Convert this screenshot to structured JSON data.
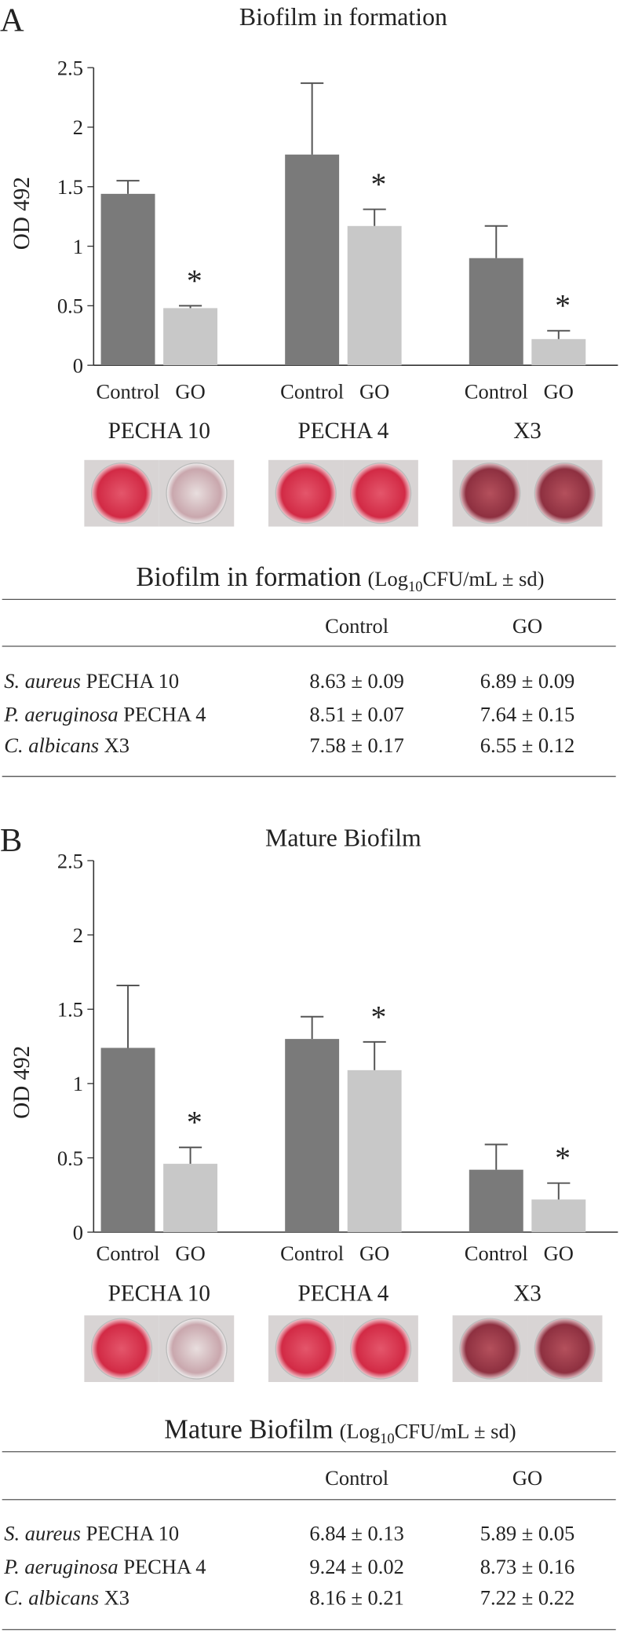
{
  "panels": [
    "A",
    "B"
  ],
  "chart_data": [
    {
      "type": "bar",
      "title": "Biofilm in formation",
      "y_label": "OD 492",
      "categories": [
        "PECHA 10",
        "PECHA 4",
        "X3"
      ],
      "series": [
        {
          "name": "Control",
          "color": "#7a7a7a",
          "values": [
            1.44,
            1.77,
            0.9
          ],
          "errors": [
            0.11,
            0.6,
            0.27
          ]
        },
        {
          "name": "GO",
          "color": "#c8c8c8",
          "values": [
            0.48,
            1.17,
            0.22
          ],
          "errors": [
            0.02,
            0.14,
            0.07
          ]
        }
      ],
      "significance": [
        "*",
        "*",
        "*"
      ],
      "ylim": [
        0,
        2.5
      ],
      "yticks": [
        0,
        0.5,
        1,
        1.5,
        2,
        2.5
      ]
    },
    {
      "type": "bar",
      "title": "Mature Biofilm",
      "y_label": "OD 492",
      "categories": [
        "PECHA 10",
        "PECHA 4",
        "X3"
      ],
      "series": [
        {
          "name": "Control",
          "color": "#7a7a7a",
          "values": [
            1.24,
            1.3,
            0.42
          ],
          "errors": [
            0.42,
            0.15,
            0.17
          ]
        },
        {
          "name": "GO",
          "color": "#c8c8c8",
          "values": [
            0.46,
            1.09,
            0.22
          ],
          "errors": [
            0.11,
            0.19,
            0.11
          ]
        }
      ],
      "significance": [
        "*",
        "*",
        "*"
      ],
      "ylim": [
        0,
        2.5
      ],
      "yticks": [
        0,
        0.5,
        1,
        1.5,
        2,
        2.5
      ]
    }
  ],
  "tables": [
    {
      "title": "Biofilm in formation",
      "unit_prefix": "(Log",
      "unit_sub": "10",
      "unit_suffix": "CFU/mL ± sd)",
      "columns": [
        "Control",
        "GO"
      ],
      "rows": [
        {
          "species": "S. aureus",
          "strain": "PECHA 10",
          "cells": [
            "8.63 ± 0.09",
            "6.89 ± 0.09"
          ]
        },
        {
          "species": "P. aeruginosa",
          "strain": "PECHA 4",
          "cells": [
            "8.51 ± 0.07",
            "7.64 ± 0.15"
          ]
        },
        {
          "species": "C. albicans",
          "strain": "X3",
          "cells": [
            "7.58 ± 0.17",
            "6.55 ± 0.12"
          ]
        }
      ]
    },
    {
      "title": "Mature Biofilm",
      "unit_prefix": "(Log",
      "unit_sub": "10",
      "unit_suffix": "CFU/mL ± sd)",
      "columns": [
        "Control",
        "GO"
      ],
      "rows": [
        {
          "species": "S. aureus",
          "strain": "PECHA 10",
          "cells": [
            "6.84 ± 0.13",
            "5.89 ± 0.05"
          ]
        },
        {
          "species": "P. aeruginosa",
          "strain": "PECHA 4",
          "cells": [
            "9.24 ± 0.02",
            "8.73 ± 0.16"
          ]
        },
        {
          "species": "C. albicans",
          "strain": "X3",
          "cells": [
            "8.16 ± 0.21",
            "7.22 ± 0.22"
          ]
        }
      ]
    }
  ]
}
